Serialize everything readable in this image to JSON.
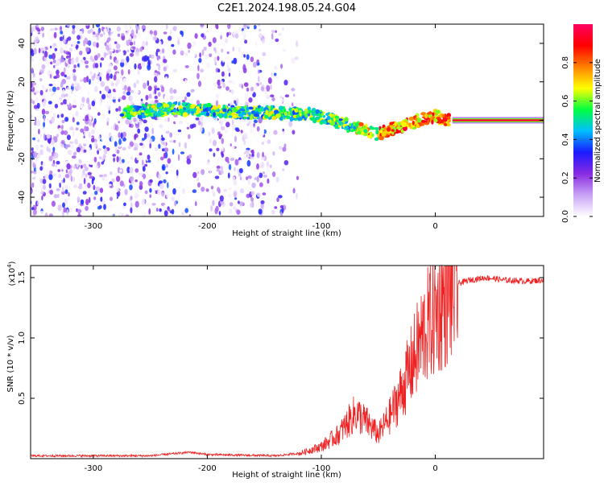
{
  "page_title": "C2E1.2024.198.05.24.G04",
  "chart_data": [
    {
      "type": "heatmap",
      "xlabel": "Height of straight line (km)",
      "ylabel": "Frequency (Hz)",
      "xlim": [
        -355,
        95
      ],
      "ylim": [
        -50,
        50
      ],
      "x_ticks": [
        -300,
        -200,
        -100,
        0
      ],
      "y_ticks": [
        -40,
        -20,
        0,
        20,
        40
      ],
      "colorbar": {
        "label": "Normalized spectral amplitude",
        "range": [
          0,
          1
        ],
        "ticks": [
          0.0,
          0.2,
          0.4,
          0.6,
          0.8
        ],
        "colors": [
          "#ffffff",
          "#c9a3f5",
          "#8a2be2",
          "#1a1aff",
          "#00bfff",
          "#00ff40",
          "#ffff00",
          "#ff8000",
          "#ff0000",
          "#ff0060"
        ]
      },
      "ridge": {
        "x": [
          -270,
          -230,
          -200,
          -170,
          -140,
          -110,
          -90,
          -75,
          -60,
          -50,
          -40,
          -25,
          -10,
          0,
          10,
          95
        ],
        "y": [
          4,
          6,
          5,
          4,
          4,
          3,
          0,
          -3,
          -6,
          -7,
          -5,
          -2,
          1,
          2,
          0,
          0
        ]
      }
    },
    {
      "type": "line",
      "xlabel": "Height of straight line (km)",
      "ylabel": "SNR (10 * v/v)",
      "y_multiplier": "(x10",
      "y_multiplier_exp": "4",
      "y_multiplier_close": ")",
      "xlim": [
        -355,
        95
      ],
      "ylim": [
        0,
        1.6
      ],
      "x_ticks": [
        -300,
        -200,
        -100,
        0
      ],
      "y_ticks": [
        0.5,
        1.0,
        1.5
      ],
      "y_tick_labels": [
        "0.5",
        "1.0",
        "1.5"
      ],
      "color": "#ee2222",
      "envelope": {
        "x": [
          -355,
          -250,
          -215,
          -200,
          -140,
          -120,
          -100,
          -85,
          -70,
          -60,
          -50,
          -40,
          -30,
          -20,
          -10,
          0,
          10,
          20,
          30,
          45,
          60,
          80,
          95
        ],
        "y": [
          0.02,
          0.02,
          0.05,
          0.03,
          0.02,
          0.04,
          0.1,
          0.2,
          0.38,
          0.3,
          0.2,
          0.35,
          0.55,
          0.8,
          1.05,
          1.2,
          1.35,
          1.45,
          1.48,
          1.5,
          1.48,
          1.47,
          1.48
        ]
      }
    }
  ]
}
